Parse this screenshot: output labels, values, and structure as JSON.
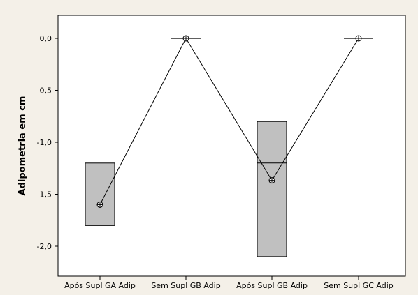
{
  "chart_data": {
    "type": "boxplot",
    "title": "",
    "xlabel": "",
    "ylabel": "Adipometria em cm",
    "ylim": [
      -2.25,
      0.2
    ],
    "yticks": [
      0.0,
      -0.5,
      -1.0,
      -1.5,
      -2.0
    ],
    "ytick_labels": [
      "0,0",
      "-0,5",
      "-1,0",
      "-1,5",
      "-2,0"
    ],
    "grid": false,
    "categories": [
      "Após Supl GA Adip",
      "Sem Supl GB Adip",
      "Após Supl GB Adip",
      "Sem Supl GC Adip"
    ],
    "boxes": [
      {
        "q1": -1.8,
        "median": -1.8,
        "q3": -1.2,
        "mean": -1.6
      },
      {
        "q1": 0.0,
        "median": 0.0,
        "q3": 0.0,
        "mean": 0.0
      },
      {
        "q1": -2.1,
        "median": -1.2,
        "q3": -0.8,
        "mean": -1.367
      },
      {
        "q1": 0.0,
        "median": 0.0,
        "q3": 0.0,
        "mean": 0.0
      }
    ],
    "mean_connect_line": true,
    "colors": {
      "background": "#f4f0e8",
      "plot_area": "#ffffff",
      "box_fill": "#c0c0c0",
      "line": "#000000"
    }
  }
}
